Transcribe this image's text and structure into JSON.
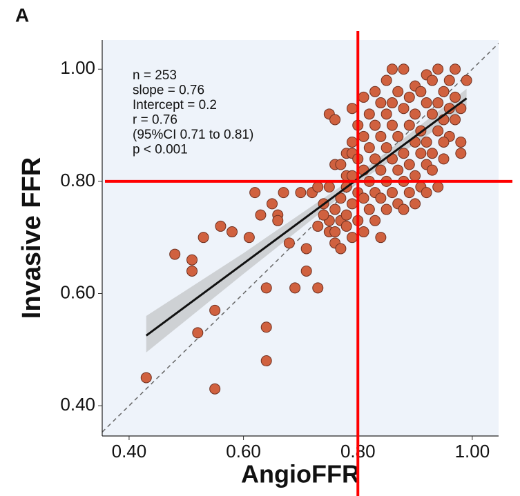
{
  "chart_data": {
    "type": "scatter",
    "panel_label": "A",
    "xlabel": "AngioFFR",
    "ylabel": "Invasive FFR",
    "xlim": [
      0.353,
      1.046
    ],
    "ylim": [
      0.346,
      1.052
    ],
    "xticks": [
      {
        "value": 0.4,
        "label": "0.40"
      },
      {
        "value": 0.6,
        "label": "0.60"
      },
      {
        "value": 0.8,
        "label": "0.80"
      },
      {
        "value": 1.0,
        "label": "1.00"
      }
    ],
    "yticks": [
      {
        "value": 0.4,
        "label": "0.40"
      },
      {
        "value": 0.6,
        "label": "0.60"
      },
      {
        "value": 0.8,
        "label": "0.80"
      },
      {
        "value": 1.0,
        "label": "1.00"
      }
    ],
    "annotation": [
      "n = 253",
      "slope = 0.76",
      "Intercept = 0.2",
      "r = 0.76",
      "(95%CI 0.71 to 0.81)",
      "p < 0.001"
    ],
    "point_color": "#d0613f",
    "reference_lines": {
      "x": 0.8,
      "y": 0.8,
      "color": "#ff0000"
    },
    "identity_line": true,
    "fit_line": {
      "x": [
        0.43,
        0.99
      ],
      "y": [
        0.525,
        0.948
      ],
      "color": "#111111"
    },
    "ci_band": {
      "x": [
        0.43,
        0.6,
        0.8,
        0.99
      ],
      "lower": [
        0.495,
        0.635,
        0.797,
        0.93
      ],
      "upper": [
        0.56,
        0.672,
        0.812,
        0.965
      ],
      "color": "#c8cacd"
    },
    "x": [
      0.43,
      0.55,
      0.64,
      0.64,
      0.64,
      0.52,
      0.55,
      0.48,
      0.51,
      0.51,
      0.53,
      0.56,
      0.58,
      0.61,
      0.62,
      0.63,
      0.65,
      0.66,
      0.66,
      0.67,
      0.68,
      0.69,
      0.71,
      0.71,
      0.73,
      0.7,
      0.72,
      0.74,
      0.73,
      0.75,
      0.73,
      0.75,
      0.76,
      0.77,
      0.77,
      0.84,
      0.75,
      0.76,
      0.79,
      0.76,
      0.77,
      0.78,
      0.79,
      0.78,
      0.86,
      0.88,
      0.92,
      0.94,
      0.97,
      0.99,
      0.96,
      0.93,
      0.9,
      0.85,
      0.87,
      0.91,
      0.95,
      0.97,
      0.83,
      0.81,
      0.84,
      0.86,
      0.89,
      0.92,
      0.94,
      0.96,
      0.98,
      0.82,
      0.85,
      0.88,
      0.9,
      0.93,
      0.95,
      0.97,
      0.8,
      0.83,
      0.86,
      0.89,
      0.91,
      0.94,
      0.96,
      0.81,
      0.84,
      0.87,
      0.9,
      0.92,
      0.95,
      0.98,
      0.79,
      0.82,
      0.85,
      0.88,
      0.91,
      0.93,
      0.98,
      0.8,
      0.83,
      0.86,
      0.89,
      0.92,
      0.95,
      0.81,
      0.84,
      0.87,
      0.9,
      0.93,
      0.79,
      0.82,
      0.85,
      0.88,
      0.91,
      0.94,
      0.8,
      0.83,
      0.86,
      0.89,
      0.92,
      0.78,
      0.81,
      0.84,
      0.87,
      0.9,
      0.77,
      0.79,
      0.82,
      0.85,
      0.88,
      0.78,
      0.8,
      0.83,
      0.76,
      0.75,
      0.78,
      0.81,
      0.76,
      0.74,
      0.79
    ],
    "y": [
      0.45,
      0.43,
      0.48,
      0.54,
      0.61,
      0.53,
      0.57,
      0.67,
      0.66,
      0.64,
      0.7,
      0.72,
      0.71,
      0.7,
      0.78,
      0.74,
      0.76,
      0.74,
      0.73,
      0.78,
      0.69,
      0.61,
      0.64,
      0.68,
      0.61,
      0.78,
      0.78,
      0.76,
      0.79,
      0.79,
      0.72,
      0.71,
      0.69,
      0.68,
      0.73,
      0.7,
      0.92,
      0.91,
      0.93,
      0.83,
      0.83,
      0.85,
      0.85,
      0.81,
      1.0,
      1.0,
      0.99,
      1.0,
      1.0,
      0.98,
      0.98,
      0.98,
      0.97,
      0.98,
      0.96,
      0.96,
      0.96,
      0.95,
      0.96,
      0.95,
      0.94,
      0.94,
      0.95,
      0.94,
      0.94,
      0.93,
      0.93,
      0.92,
      0.92,
      0.93,
      0.92,
      0.92,
      0.91,
      0.91,
      0.9,
      0.9,
      0.9,
      0.9,
      0.89,
      0.89,
      0.88,
      0.88,
      0.88,
      0.88,
      0.87,
      0.87,
      0.87,
      0.87,
      0.87,
      0.86,
      0.86,
      0.85,
      0.85,
      0.85,
      0.85,
      0.84,
      0.84,
      0.84,
      0.83,
      0.83,
      0.84,
      0.82,
      0.82,
      0.82,
      0.81,
      0.82,
      0.81,
      0.8,
      0.8,
      0.8,
      0.79,
      0.79,
      0.78,
      0.78,
      0.78,
      0.78,
      0.78,
      0.79,
      0.77,
      0.77,
      0.76,
      0.76,
      0.77,
      0.76,
      0.75,
      0.75,
      0.75,
      0.74,
      0.73,
      0.73,
      0.75,
      0.73,
      0.72,
      0.71,
      0.71,
      0.74,
      0.7
    ]
  }
}
